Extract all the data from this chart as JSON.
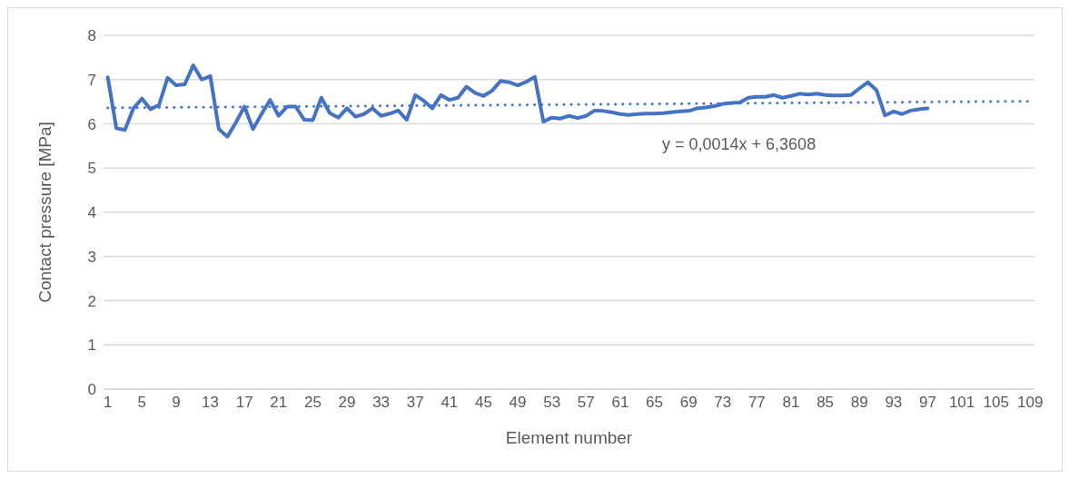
{
  "chart_data": {
    "type": "line",
    "xlabel": "Element number",
    "ylabel": "Contact pressure [MPa]",
    "xlim": [
      0.5,
      109.5
    ],
    "xticks": [
      1,
      5,
      9,
      13,
      17,
      21,
      25,
      29,
      33,
      37,
      41,
      45,
      49,
      53,
      57,
      61,
      65,
      69,
      73,
      77,
      81,
      85,
      89,
      93,
      97,
      101,
      105,
      109
    ],
    "ylim": [
      0,
      8
    ],
    "yticks": [
      0,
      1,
      2,
      3,
      4,
      5,
      6,
      7,
      8
    ],
    "grid": "y",
    "marker": "none",
    "annotations": [
      "y = 0,0014x + 6,3608"
    ],
    "series": [
      {
        "color": "#4472c4",
        "line_style": "solid",
        "x": [
          1,
          2,
          3,
          4,
          5,
          6,
          7,
          8,
          9,
          10,
          11,
          12,
          13,
          14,
          15,
          16,
          17,
          18,
          19,
          20,
          21,
          22,
          23,
          24,
          25,
          26,
          27,
          28,
          29,
          30,
          31,
          32,
          33,
          34,
          35,
          36,
          37,
          38,
          39,
          40,
          41,
          42,
          43,
          44,
          45,
          46,
          47,
          48,
          49,
          50,
          51,
          52,
          53,
          54,
          55,
          56,
          57,
          58,
          59,
          60,
          61,
          62,
          63,
          64,
          65,
          66,
          67,
          68,
          69,
          70,
          71,
          72,
          73,
          74,
          75,
          76,
          77,
          78,
          79,
          80,
          81,
          82,
          83,
          84,
          85,
          86,
          87,
          88,
          89,
          90,
          91,
          92,
          93,
          94,
          95,
          96,
          97
        ],
        "values": [
          7.05,
          5.9,
          5.86,
          6.35,
          6.57,
          6.33,
          6.43,
          7.04,
          6.87,
          6.89,
          7.32,
          7.0,
          7.08,
          5.88,
          5.71,
          6.03,
          6.39,
          5.88,
          6.22,
          6.54,
          6.18,
          6.39,
          6.39,
          6.09,
          6.08,
          6.59,
          6.24,
          6.14,
          6.35,
          6.16,
          6.22,
          6.35,
          6.18,
          6.23,
          6.3,
          6.09,
          6.65,
          6.52,
          6.35,
          6.65,
          6.54,
          6.59,
          6.84,
          6.7,
          6.63,
          6.75,
          6.97,
          6.94,
          6.87,
          6.95,
          7.06,
          6.05,
          6.14,
          6.12,
          6.18,
          6.13,
          6.18,
          6.3,
          6.29,
          6.26,
          6.22,
          6.2,
          6.22,
          6.23,
          6.23,
          6.24,
          6.26,
          6.28,
          6.29,
          6.35,
          6.37,
          6.4,
          6.45,
          6.47,
          6.48,
          6.59,
          6.61,
          6.61,
          6.65,
          6.59,
          6.63,
          6.68,
          6.66,
          6.68,
          6.65,
          6.64,
          6.64,
          6.65,
          6.8,
          6.94,
          6.76,
          6.19,
          6.28,
          6.22,
          6.3,
          6.33,
          6.35
        ]
      },
      {
        "type": "line",
        "color": "#4472c4",
        "line_style": "dotted",
        "x": [
          1,
          109
        ],
        "values": [
          6.36,
          6.51
        ]
      }
    ]
  }
}
